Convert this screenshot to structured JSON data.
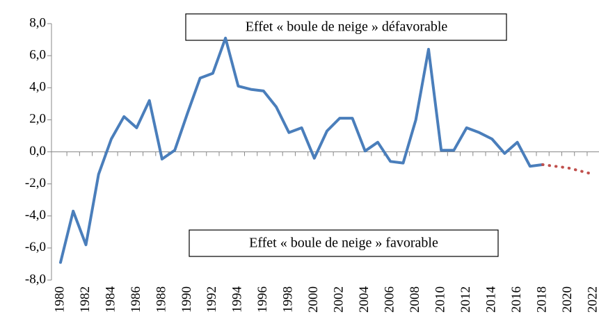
{
  "chart_data": {
    "type": "line",
    "categories": [
      "1980",
      null,
      "1982",
      null,
      "1984",
      null,
      "1986",
      null,
      "1988",
      null,
      "1990",
      null,
      "1992",
      null,
      "1994",
      null,
      "1996",
      null,
      "1998",
      null,
      "2000",
      null,
      "2002",
      null,
      "2004",
      null,
      "2006",
      null,
      "2008",
      null,
      "2010",
      null,
      "2012",
      null,
      "2014",
      null,
      "2016",
      null,
      "2018",
      null,
      "2020",
      null,
      "2022"
    ],
    "series": [
      {
        "color": "#4a7ebb",
        "style": "solid",
        "values": [
          -6.9,
          -3.7,
          -5.8,
          -1.4,
          0.8,
          2.2,
          1.5,
          3.2,
          -0.45,
          0.1,
          2.4,
          4.6,
          4.9,
          7.1,
          4.1,
          3.9,
          3.8,
          2.8,
          1.2,
          1.5,
          -0.4,
          1.3,
          2.1,
          2.1,
          0.05,
          0.6,
          -0.6,
          -0.7,
          2.0,
          6.4,
          0.1,
          0.1,
          1.5,
          1.2,
          0.8,
          -0.1,
          0.6,
          -0.9,
          -0.8,
          null,
          null,
          null,
          null
        ]
      },
      {
        "color": "#c0504d",
        "style": "dotted",
        "values": [
          null,
          null,
          null,
          null,
          null,
          null,
          null,
          null,
          null,
          null,
          null,
          null,
          null,
          null,
          null,
          null,
          null,
          null,
          null,
          null,
          null,
          null,
          null,
          null,
          null,
          null,
          null,
          null,
          null,
          null,
          null,
          null,
          null,
          null,
          null,
          null,
          null,
          null,
          -0.8,
          -0.9,
          -1.0,
          -1.2,
          -1.4
        ]
      }
    ],
    "ylim": [
      -8,
      8
    ],
    "yticks": [
      {
        "value": -8,
        "label": "-8,0"
      },
      {
        "value": -6,
        "label": "-6,0"
      },
      {
        "value": -4,
        "label": "-4,0"
      },
      {
        "value": -2,
        "label": "-2,0"
      },
      {
        "value": 0,
        "label": "0,0"
      },
      {
        "value": 2,
        "label": "2,0"
      },
      {
        "value": 4,
        "label": "4,0"
      },
      {
        "value": 6,
        "label": "6,0"
      },
      {
        "value": 8,
        "label": "8,0"
      }
    ],
    "annotations": [
      "Effet « boule de neige » défavorable",
      "Effet « boule de neige » favorable"
    ]
  }
}
